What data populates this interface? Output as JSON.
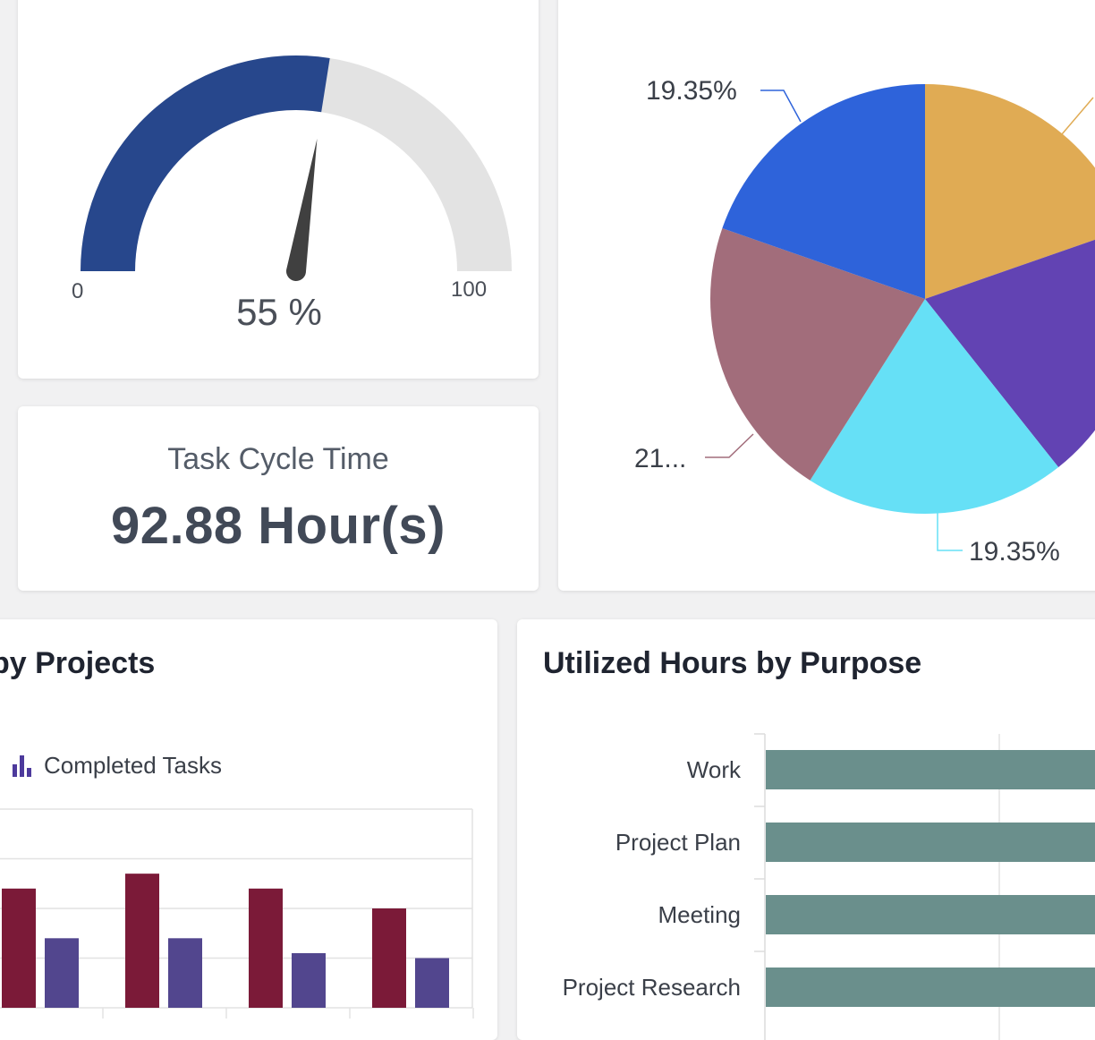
{
  "gauge": {
    "value": 55,
    "value_label": "55 %",
    "min_label": "0",
    "max_label": "100",
    "fill_color": "#27478c",
    "track_color": "#e3e3e3",
    "needle_color": "#404040"
  },
  "cycle_time": {
    "title": "Task Cycle Time",
    "value": "92.88 Hour(s)"
  },
  "projects_card": {
    "title": "by Projects",
    "legend_label": "Completed Tasks",
    "legend_icon": "bar-chart-icon"
  },
  "purpose_card": {
    "title": "Utilized Hours by Purpose"
  },
  "chart_data": [
    {
      "type": "pie",
      "slice_labels": [
        "19.35%",
        "21...",
        "19.35%"
      ],
      "slices": [
        {
          "color": "#e0ab54",
          "value": 19.35
        },
        {
          "color": "#6243b3",
          "value": 19.35
        },
        {
          "color": "#66e0f6",
          "value": 19.35
        },
        {
          "label": "21...",
          "color": "#a26d7b",
          "value": 21.0
        },
        {
          "label": "19.35%",
          "color": "#2e63da",
          "value": 19.35
        }
      ]
    },
    {
      "type": "bar",
      "legend": [
        "Completed Tasks"
      ],
      "ylim": [
        0,
        4
      ],
      "series": [
        {
          "color": "#7b1a38",
          "values": [
            2.4,
            2.7,
            2.4,
            2.0
          ]
        },
        {
          "color": "#52468e",
          "values": [
            1.4,
            1.4,
            1.1,
            1.0
          ]
        }
      ]
    },
    {
      "type": "bar",
      "orientation": "horizontal",
      "categories": [
        "Work",
        "Project Plan",
        "Meeting",
        "Project Research"
      ],
      "bar_color": "#6a8f8c"
    }
  ]
}
